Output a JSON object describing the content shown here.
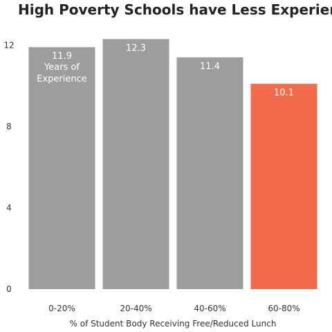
{
  "chart_data": {
    "type": "bar",
    "title": "High Poverty Schools have Less Experienced Teachers",
    "xlabel": "% of Student Body Receiving Free/Reduced Lunch",
    "ylabel": "",
    "categories": [
      "0-20%",
      "20-40%",
      "40-60%",
      "60-80%"
    ],
    "values": [
      11.9,
      12.3,
      11.4,
      10.1
    ],
    "value_labels": [
      "11.9",
      "12.3",
      "11.4",
      "10.1"
    ],
    "first_bar_annotation": [
      "Years of",
      "Experience"
    ],
    "ylim": [
      0,
      13.2
    ],
    "yticks": [
      0,
      4,
      8,
      12
    ],
    "ytick_labels": [
      "0",
      "4",
      "8",
      "12"
    ],
    "grid": false,
    "colors": {
      "default_bar": "#9d9d9b",
      "highlight_bar": "#f26b4b",
      "highlight_category": "60-80%",
      "label_text": "#ffffff"
    }
  }
}
